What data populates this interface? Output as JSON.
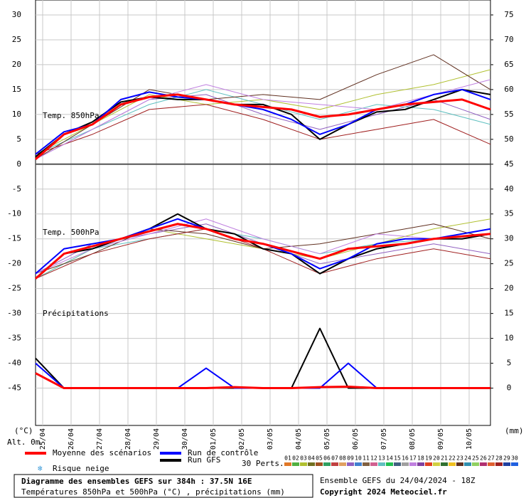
{
  "chart_data": {
    "type": "line",
    "title": "Diagramme des ensembles GEFS sur 384h : 37.5N 16E",
    "subtitle": "Températures 850hPa et 500hPa (°C) , précipitations (mm)",
    "run_label": "Ensemble GEFS du 24/04/2024 - 18Z",
    "copyright": "Copyright 2024 Meteociel.fr",
    "y_unit": "(°C)",
    "y2_unit": "(mm)",
    "altitude": "Alt. 0m",
    "panel_labels": [
      "Temp. 850hPa",
      "Temp. 500hPa",
      "Précipitations"
    ],
    "snow_label": "Risque neige",
    "perts_label": "30 Perts.",
    "xlim": [
      0,
      384
    ],
    "xticks": [
      {
        "value": 6,
        "label": "25/04"
      },
      {
        "value": 30,
        "label": "26/04"
      },
      {
        "value": 54,
        "label": "27/04"
      },
      {
        "value": 78,
        "label": "28/04"
      },
      {
        "value": 102,
        "label": "29/04"
      },
      {
        "value": 126,
        "label": "30/04"
      },
      {
        "value": 150,
        "label": "01/05"
      },
      {
        "value": 174,
        "label": "02/05"
      },
      {
        "value": 198,
        "label": "03/05"
      },
      {
        "value": 222,
        "label": "04/05"
      },
      {
        "value": 246,
        "label": "05/05"
      },
      {
        "value": 270,
        "label": "06/05"
      },
      {
        "value": 294,
        "label": "07/05"
      },
      {
        "value": 318,
        "label": "08/05"
      },
      {
        "value": 342,
        "label": "09/05"
      },
      {
        "value": 366,
        "label": "10/05"
      }
    ],
    "ylim": [
      -52.5,
      33
    ],
    "yticks": [
      -45,
      -40,
      -35,
      -30,
      -25,
      -20,
      -15,
      -10,
      -5,
      0,
      5,
      10,
      15,
      20,
      25,
      30
    ],
    "y2lim": [
      -7.5,
      78
    ],
    "y2ticks": [
      0,
      5,
      10,
      15,
      20,
      25,
      30,
      35,
      40,
      45,
      50,
      55,
      60,
      65,
      70,
      75
    ],
    "grid": true,
    "x": [
      0,
      24,
      48,
      72,
      96,
      120,
      144,
      168,
      192,
      216,
      240,
      264,
      288,
      312,
      336,
      360,
      384
    ],
    "series": [
      {
        "name": "Moyenne des scénarios",
        "color": "#ff0000",
        "temp850": [
          1,
          6,
          8,
          12,
          13.5,
          14,
          13,
          12,
          11.5,
          11,
          9.5,
          10,
          11,
          12,
          12.5,
          13,
          11
        ],
        "temp500": [
          -23,
          -18,
          -16.5,
          -15,
          -13.5,
          -12,
          -13,
          -15,
          -16,
          -17.5,
          -19,
          -17,
          -16.5,
          -16,
          -15,
          -14.5,
          -14
        ],
        "precip": [
          3,
          0,
          0,
          0,
          0,
          0,
          0,
          0.2,
          0,
          0,
          0.2,
          0.3,
          0,
          0,
          0,
          0,
          0
        ]
      },
      {
        "name": "Run de contrôle",
        "color": "#0000ff",
        "temp850": [
          2,
          6.5,
          8,
          13,
          14.5,
          13.5,
          13,
          12,
          11,
          9,
          6,
          8,
          11,
          12,
          14,
          15,
          13
        ],
        "temp500": [
          -22,
          -17,
          -16,
          -15,
          -13,
          -11,
          -13,
          -15,
          -16,
          -18,
          -21,
          -19,
          -16,
          -15,
          -15,
          -14,
          -13
        ],
        "precip": [
          5,
          0,
          0,
          0,
          0,
          0,
          4,
          0,
          0,
          0,
          0,
          5,
          0,
          0,
          0,
          0,
          0
        ]
      },
      {
        "name": "Run GFS",
        "color": "#000000",
        "temp850": [
          1.5,
          6,
          8.5,
          12.5,
          13.5,
          13,
          13,
          12,
          12,
          10,
          5,
          8,
          10.5,
          11,
          13,
          15,
          14
        ],
        "temp500": [
          -23,
          -18,
          -17,
          -15,
          -13,
          -10,
          -13,
          -14,
          -17,
          -18,
          -22,
          -19,
          -17,
          -16,
          -15,
          -15,
          -14
        ],
        "precip": [
          6,
          0,
          0,
          0,
          0,
          0,
          0,
          0,
          0,
          0,
          12,
          0,
          0,
          0,
          0,
          0,
          0
        ]
      }
    ],
    "members": [
      {
        "name": "01",
        "color": "#e07828"
      },
      {
        "name": "02",
        "color": "#50b040"
      },
      {
        "name": "03",
        "color": "#b0c030"
      },
      {
        "name": "04",
        "color": "#707020"
      },
      {
        "name": "05",
        "color": "#a05020"
      },
      {
        "name": "06",
        "color": "#30a060"
      },
      {
        "name": "07",
        "color": "#c04040"
      },
      {
        "name": "08",
        "color": "#e0a060"
      },
      {
        "name": "09",
        "color": "#9060c0"
      },
      {
        "name": "10",
        "color": "#4080d0"
      },
      {
        "name": "11",
        "color": "#806040"
      },
      {
        "name": "12",
        "color": "#d06090"
      },
      {
        "name": "13",
        "color": "#60c0c0"
      },
      {
        "name": "14",
        "color": "#20c050"
      },
      {
        "name": "15",
        "color": "#406080"
      },
      {
        "name": "16",
        "color": "#a0a0a0"
      },
      {
        "name": "17",
        "color": "#c080e0"
      },
      {
        "name": "18",
        "color": "#8040a0"
      },
      {
        "name": "19",
        "color": "#e04020"
      },
      {
        "name": "20",
        "color": "#d0d040"
      },
      {
        "name": "21",
        "color": "#307030"
      },
      {
        "name": "22",
        "color": "#f0c020"
      },
      {
        "name": "23",
        "color": "#603020"
      },
      {
        "name": "24",
        "color": "#3090b0"
      },
      {
        "name": "25",
        "color": "#90d060"
      },
      {
        "name": "26",
        "color": "#b03070"
      },
      {
        "name": "27",
        "color": "#e06030"
      },
      {
        "name": "28",
        "color": "#a02020"
      },
      {
        "name": "29",
        "color": "#2040a0"
      },
      {
        "name": "30",
        "color": "#2060e0"
      }
    ],
    "member_x": [
      0,
      48,
      96,
      144,
      192,
      240,
      288,
      336,
      384
    ],
    "member_series": [
      {
        "member": "03",
        "temp850": [
          2,
          8,
          14,
          12,
          13,
          11,
          14,
          16,
          19
        ],
        "temp500": [
          -23,
          -17,
          -13,
          -15,
          -17,
          -19,
          -16,
          -13,
          -11
        ]
      },
      {
        "member": "09",
        "temp850": [
          1,
          7,
          13,
          14,
          10,
          7,
          10,
          13,
          9
        ],
        "temp500": [
          -22,
          -16,
          -14,
          -12,
          -16,
          -20,
          -18,
          -16,
          -18
        ]
      },
      {
        "member": "13",
        "temp850": [
          2,
          7,
          12,
          15,
          12,
          9,
          12,
          11,
          8
        ],
        "temp500": [
          -23,
          -17,
          -15,
          -13,
          -15,
          -18,
          -16,
          -15,
          -13
        ]
      },
      {
        "member": "23",
        "temp850": [
          1,
          8,
          15,
          13,
          14,
          13,
          18,
          22,
          15
        ],
        "temp500": [
          -22,
          -18,
          -13,
          -14,
          -17,
          -16,
          -14,
          -12,
          -15
        ]
      },
      {
        "member": "28",
        "temp850": [
          2,
          6,
          11,
          12,
          9,
          5,
          7,
          9,
          4
        ],
        "temp500": [
          -23,
          -18,
          -15,
          -13,
          -17,
          -22,
          -19,
          -17,
          -19
        ]
      },
      {
        "member": "17",
        "temp850": [
          1,
          7,
          13,
          16,
          13,
          12,
          11,
          14,
          17
        ],
        "temp500": [
          -22,
          -17,
          -14,
          -11,
          -15,
          -18,
          -14,
          -15,
          -14
        ]
      }
    ]
  }
}
